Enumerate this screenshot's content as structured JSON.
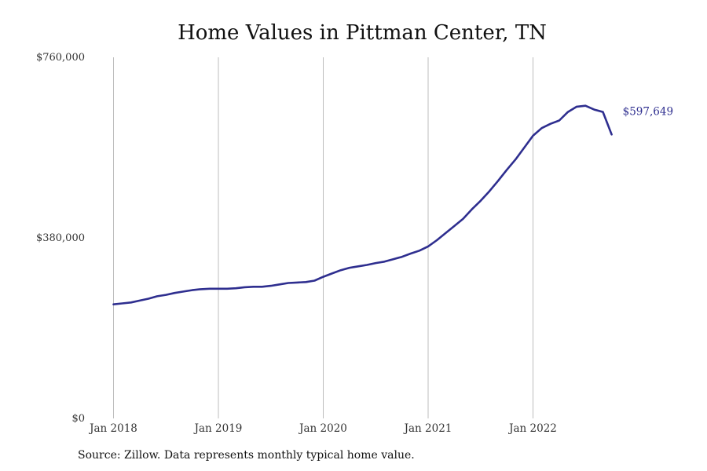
{
  "chart_data": {
    "type": "line",
    "title": "Home Values in Pittman Center, TN",
    "xlabel": "",
    "ylabel": "",
    "ylim": [
      0,
      760000
    ],
    "yticks": [
      {
        "value": 0,
        "label": "$0"
      },
      {
        "value": 380000,
        "label": "$380,000"
      },
      {
        "value": 760000,
        "label": "$760,000"
      }
    ],
    "xticks": [
      {
        "x": "2018-01",
        "label": "Jan 2018"
      },
      {
        "x": "2019-01",
        "label": "Jan 2019"
      },
      {
        "x": "2020-01",
        "label": "Jan 2020"
      },
      {
        "x": "2021-01",
        "label": "Jan 2021"
      },
      {
        "x": "2022-01",
        "label": "Jan 2022"
      }
    ],
    "xlim": [
      "2018-01",
      "2022-12"
    ],
    "grid": {
      "vertical": true,
      "horizontal": false
    },
    "series": [
      {
        "color": "#2e2e8f",
        "end_label": "$597,649",
        "x": [
          "2018-01",
          "2018-02",
          "2018-03",
          "2018-04",
          "2018-05",
          "2018-06",
          "2018-07",
          "2018-08",
          "2018-09",
          "2018-10",
          "2018-11",
          "2018-12",
          "2019-01",
          "2019-02",
          "2019-03",
          "2019-04",
          "2019-05",
          "2019-06",
          "2019-07",
          "2019-08",
          "2019-09",
          "2019-10",
          "2019-11",
          "2019-12",
          "2020-01",
          "2020-02",
          "2020-03",
          "2020-04",
          "2020-05",
          "2020-06",
          "2020-07",
          "2020-08",
          "2020-09",
          "2020-10",
          "2020-11",
          "2020-12",
          "2021-01",
          "2021-02",
          "2021-03",
          "2021-04",
          "2021-05",
          "2021-06",
          "2021-07",
          "2021-08",
          "2021-09",
          "2021-10",
          "2021-11",
          "2021-12",
          "2022-01",
          "2022-02",
          "2022-03",
          "2022-04",
          "2022-05",
          "2022-06",
          "2022-07",
          "2022-08",
          "2022-09",
          "2022-10"
        ],
        "values": [
          240000,
          242000,
          244000,
          248000,
          252000,
          257000,
          260000,
          264000,
          267000,
          270000,
          272000,
          273000,
          273000,
          273000,
          274000,
          276000,
          277000,
          277000,
          279000,
          282000,
          285000,
          286000,
          287000,
          290000,
          298000,
          305000,
          312000,
          317000,
          320000,
          323000,
          327000,
          330000,
          335000,
          340000,
          347000,
          353000,
          362000,
          375000,
          390000,
          405000,
          420000,
          440000,
          458000,
          478000,
          500000,
          523000,
          545000,
          570000,
          595000,
          611000,
          620000,
          627000,
          645000,
          656000,
          658000,
          650000,
          645000,
          597649
        ]
      }
    ]
  },
  "source": "Source: Zillow. Data represents monthly typical home value."
}
